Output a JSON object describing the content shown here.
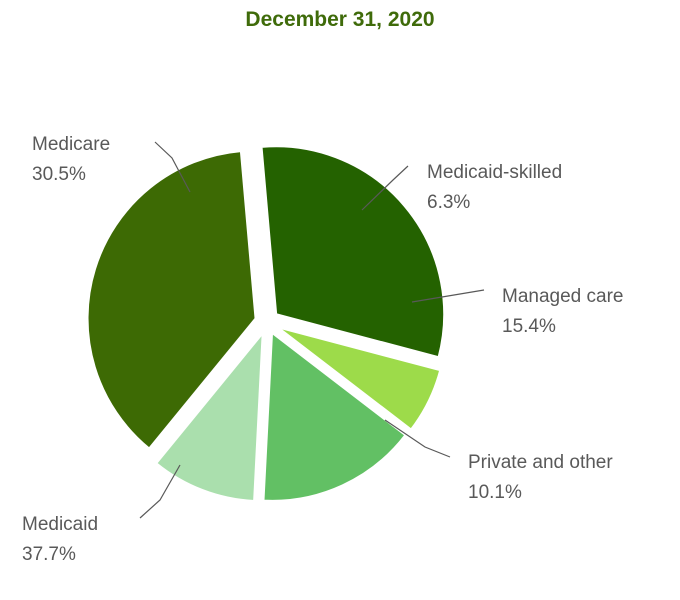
{
  "chart_data": {
    "type": "pie",
    "title": "December 31, 2020",
    "slices": [
      {
        "name": "Medicare",
        "value": 30.5,
        "label": "30.5%",
        "color": "#246200"
      },
      {
        "name": "Medicaid-skilled",
        "value": 6.3,
        "label": "6.3%",
        "color": "#9ddb4a"
      },
      {
        "name": "Managed care",
        "value": 15.4,
        "label": "15.4%",
        "color": "#62c064"
      },
      {
        "name": "Private and other",
        "value": 10.1,
        "label": "10.1%",
        "color": "#aadfad"
      },
      {
        "name": "Medicaid",
        "value": 37.7,
        "label": "37.7%",
        "color": "#3d6a04"
      }
    ],
    "exploded": [
      "Medicare",
      "Medicaid-skilled",
      "Managed care",
      "Private and other",
      "Medicaid"
    ],
    "label_color": "#595959",
    "title_color": "#3f6b0a",
    "legend": "none"
  }
}
